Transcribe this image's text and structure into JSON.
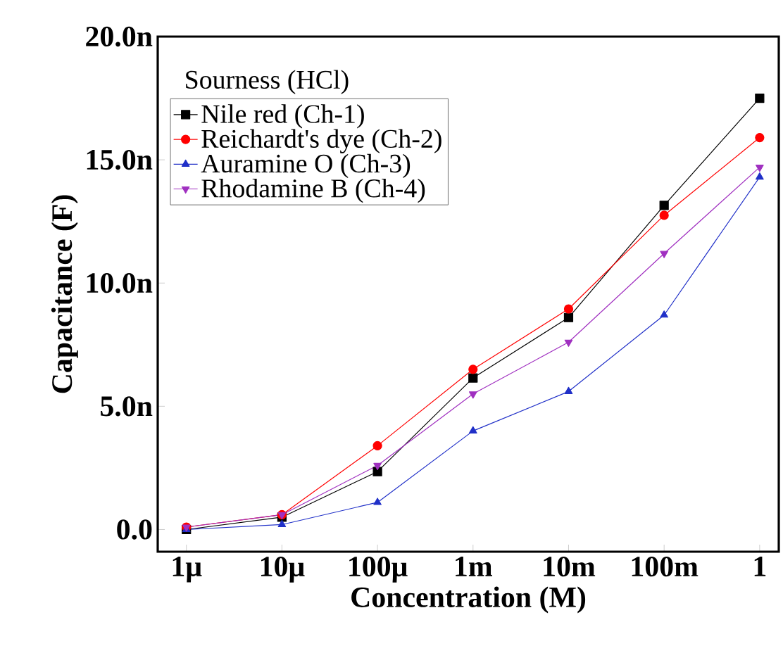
{
  "chart_data": {
    "type": "line",
    "xlabel": "Concentration (M)",
    "ylabel": "Capacitance (F)",
    "legend_title": "Sourness (HCl)",
    "categories": [
      "1μ",
      "10μ",
      "100μ",
      "1m",
      "10m",
      "100m",
      "1"
    ],
    "ylim": [
      -0.9,
      20
    ],
    "yticks": [
      {
        "value": 0,
        "label": "0.0"
      },
      {
        "value": 5,
        "label": "5.0n"
      },
      {
        "value": 10,
        "label": "10.0n"
      },
      {
        "value": 15,
        "label": "15.0n"
      },
      {
        "value": 20,
        "label": "20.0n"
      }
    ],
    "legend": "top left",
    "grid": false,
    "line_style": "solid",
    "series": [
      {
        "name": "Nile red (Ch-1)",
        "color": "#000000",
        "marker": "square",
        "values": [
          0,
          0.5,
          2.35,
          6.15,
          8.6,
          13.15,
          17.5
        ]
      },
      {
        "name": "Reichardt's dye (Ch-2)",
        "color": "#ff0000",
        "marker": "circle",
        "values": [
          0.1,
          0.6,
          3.4,
          6.5,
          8.95,
          12.75,
          15.9
        ]
      },
      {
        "name": "Auramine O (Ch-3)",
        "color": "#2030c8",
        "marker": "triangle",
        "values": [
          0,
          0.2,
          1.1,
          4.0,
          5.6,
          8.7,
          14.3
        ]
      },
      {
        "name": "Rhodamine B (Ch-4)",
        "color": "#a030c0",
        "marker": "triangle-down",
        "values": [
          0.1,
          0.6,
          2.6,
          5.5,
          7.6,
          11.2,
          14.7
        ]
      }
    ]
  }
}
